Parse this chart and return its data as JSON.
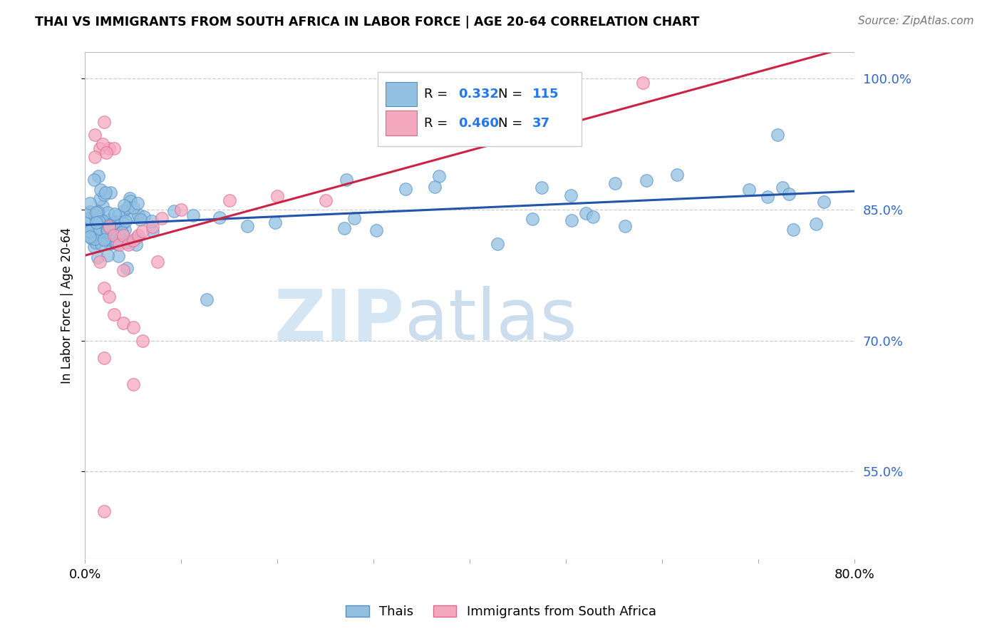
{
  "title": "THAI VS IMMIGRANTS FROM SOUTH AFRICA IN LABOR FORCE | AGE 20-64 CORRELATION CHART",
  "source": "Source: ZipAtlas.com",
  "ylabel": "In Labor Force | Age 20-64",
  "xlim": [
    0.0,
    0.8
  ],
  "ylim": [
    0.45,
    1.03
  ],
  "ytick_vals": [
    0.55,
    0.7,
    0.85,
    1.0
  ],
  "ytick_labels": [
    "55.0%",
    "70.0%",
    "85.0%",
    "100.0%"
  ],
  "blue_color": "#92c0e0",
  "pink_color": "#f4a8c0",
  "blue_edge": "#5590cc",
  "pink_edge": "#e06890",
  "trend_blue": "#2255aa",
  "trend_pink": "#cc2244",
  "legend_R_blue": "0.332",
  "legend_N_blue": "115",
  "legend_R_pink": "0.460",
  "legend_N_pink": "37",
  "legend_label_blue": "Thais",
  "legend_label_pink": "Immigrants from South Africa",
  "watermark_zip": "ZIP",
  "watermark_atlas": "atlas",
  "watermark_color_zip": "#b8d4ee",
  "watermark_color_atlas": "#9bbedd"
}
